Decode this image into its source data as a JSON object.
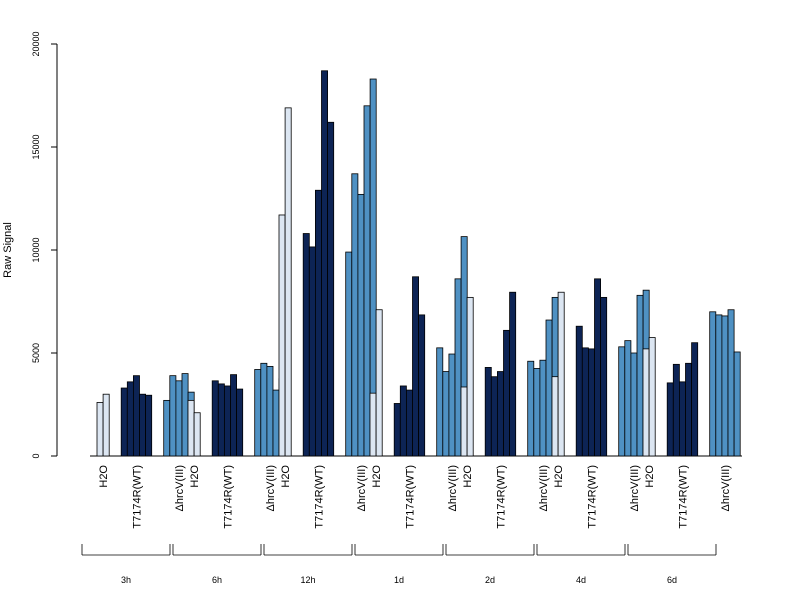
{
  "chart_data": {
    "type": "bar",
    "ylabel": "Raw Signal",
    "xlabel": "",
    "title": "",
    "ylim": [
      0,
      20000
    ],
    "yticks": [
      "0",
      "5000",
      "10000",
      "15000",
      "20000"
    ],
    "grid": false,
    "legend": "none",
    "group_labels": [
      "H2O",
      "T7174R(WT)",
      "ΔhrcV(III)"
    ],
    "colors": {
      "H2O": "#dce6f2",
      "T7174R(WT)": "#0d2455",
      "ΔhrcV(III)": "#4f91c3"
    },
    "timepoints": [
      {
        "label": "3h",
        "groups": [
          [
            2600,
            3000
          ],
          [
            3300,
            3600,
            3900,
            3000,
            2950
          ],
          [
            2700,
            3900,
            3650,
            4000,
            3100
          ]
        ]
      },
      {
        "label": "6h",
        "groups": [
          [
            2700,
            2100
          ],
          [
            3650,
            3500,
            3400,
            3950,
            3250
          ],
          [
            4200,
            4500,
            4350,
            3200,
            3750
          ]
        ]
      },
      {
        "label": "12h",
        "groups": [
          [
            11700,
            16900
          ],
          [
            10800,
            10150,
            12900,
            18700,
            16200
          ],
          [
            9900,
            13700,
            12700,
            17000,
            18300
          ]
        ]
      },
      {
        "label": "1d",
        "groups": [
          [
            3050,
            7100
          ],
          [
            2550,
            3400,
            3200,
            8700,
            6850
          ],
          [
            5250,
            4100,
            4950,
            8600,
            10650
          ]
        ]
      },
      {
        "label": "2d",
        "groups": [
          [
            3350,
            7700
          ],
          [
            4300,
            3850,
            4100,
            6100,
            7950
          ],
          [
            4600,
            4250,
            4650,
            6600,
            7700
          ]
        ]
      },
      {
        "label": "4d",
        "groups": [
          [
            3850,
            7950
          ],
          [
            6300,
            5250,
            5200,
            8600,
            7700
          ],
          [
            5300,
            5600,
            5000,
            7800,
            8050
          ]
        ]
      },
      {
        "label": "6d",
        "groups": [
          [
            5200,
            5750
          ],
          [
            3550,
            4450,
            3600,
            4500,
            5500
          ],
          [
            7000,
            6850,
            6800,
            7100,
            5050
          ]
        ]
      }
    ]
  }
}
